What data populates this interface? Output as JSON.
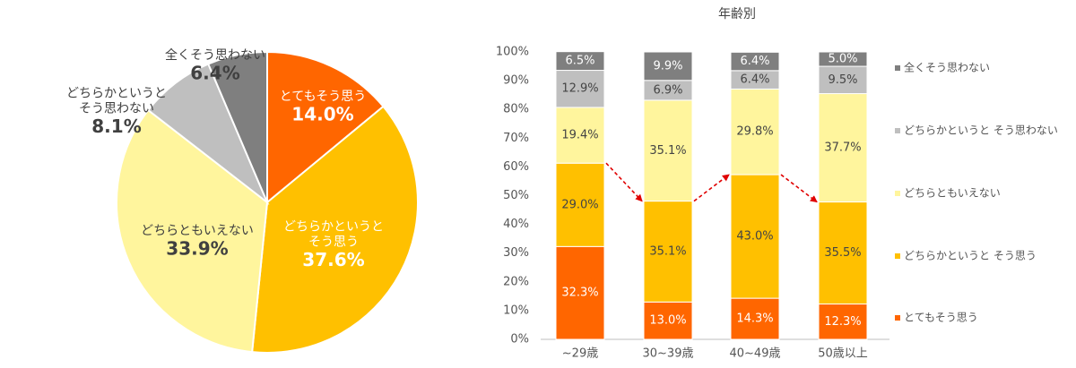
{
  "chart_data": [
    {
      "type": "pie",
      "title": "",
      "slices": [
        {
          "label": "とてもそう思う",
          "value": 14.0,
          "display": "14.0%",
          "color": "#ff6600"
        },
        {
          "label": "どちらかというと\nそう思う",
          "value": 37.6,
          "display": "37.6%",
          "color": "#ffc000"
        },
        {
          "label": "どちらともいえない",
          "value": 33.9,
          "display": "33.9%",
          "color": "#fff59d"
        },
        {
          "label": "どちらかというと\nそう思わない",
          "value": 8.1,
          "display": "8.1%",
          "color": "#bfbfbf"
        },
        {
          "label": "全くそう思わない",
          "value": 6.4,
          "display": "6.4%",
          "color": "#7f7f7f"
        }
      ]
    },
    {
      "type": "bar",
      "stacked": true,
      "title": "年齢別",
      "categories": [
        "~29歳",
        "30~39歳",
        "40~49歳",
        "50歳以上"
      ],
      "ylim": [
        0,
        100
      ],
      "yticks": [
        "0%",
        "10%",
        "20%",
        "30%",
        "40%",
        "50%",
        "60%",
        "70%",
        "80%",
        "90%",
        "100%"
      ],
      "legend_position": "right",
      "series": [
        {
          "name": "とてもそう思う",
          "color": "#ff6600",
          "label_color": "#ffffff",
          "values": [
            32.3,
            13.0,
            14.3,
            12.3
          ],
          "labels": [
            "32.3%",
            "13.0%",
            "14.3%",
            "12.3%"
          ]
        },
        {
          "name": "どちらかというと そう思う",
          "color": "#ffc000",
          "label_color": "#444444",
          "values": [
            29.0,
            35.1,
            43.0,
            35.5
          ],
          "labels": [
            "29.0%",
            "35.1%",
            "43.0%",
            "35.5%"
          ]
        },
        {
          "name": "どちらともいえない",
          "color": "#fff59d",
          "label_color": "#444444",
          "values": [
            19.4,
            35.1,
            29.8,
            37.7
          ],
          "labels": [
            "19.4%",
            "35.1%",
            "29.8%",
            "37.7%"
          ]
        },
        {
          "name": "どちらかというと そう思わない",
          "color": "#bfbfbf",
          "label_color": "#444444",
          "values": [
            12.9,
            6.9,
            6.4,
            9.5
          ],
          "labels": [
            "12.9%",
            "6.9%",
            "6.4%",
            "9.5%"
          ]
        },
        {
          "name": "全くそう思わない",
          "color": "#7f7f7f",
          "label_color": "#ffffff",
          "values": [
            6.5,
            9.9,
            6.4,
            5.0
          ],
          "labels": [
            "6.5%",
            "9.9%",
            "6.4%",
            "5.0%"
          ]
        }
      ],
      "trend_arrows_color": "#e00000"
    }
  ]
}
